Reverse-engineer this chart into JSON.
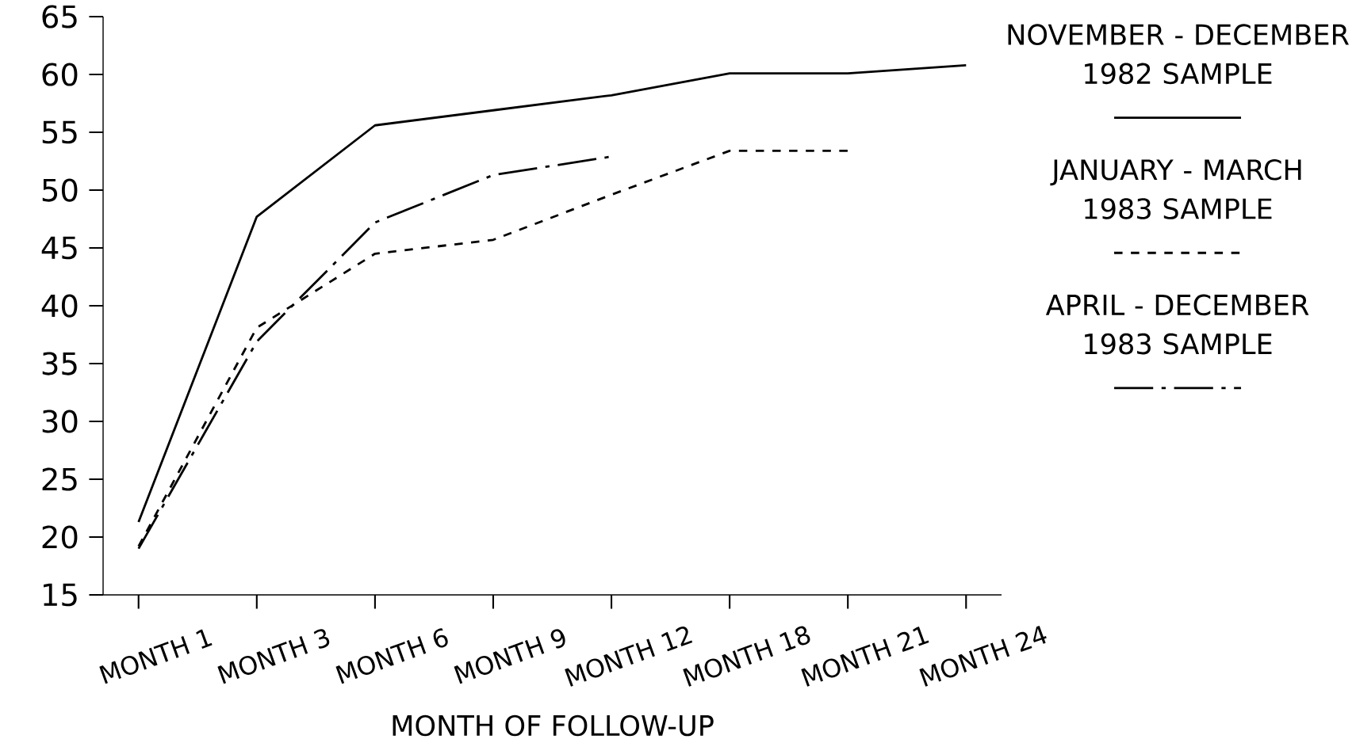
{
  "chart_data": {
    "type": "line",
    "xlabel": "MONTH OF FOLLOW-UP",
    "categories": [
      "MONTH 1",
      "MONTH 3",
      "MONTH 6",
      "MONTH 9",
      "MONTH 12",
      "MONTH 18",
      "MONTH 21",
      "MONTH 24"
    ],
    "series": [
      {
        "name": "NOVEMBER - DECEMBER 1982 SAMPLE",
        "color": "#000000",
        "line_style": "solid",
        "values": [
          21.3,
          47.7,
          55.6,
          56.9,
          58.2,
          60.1,
          60.1,
          60.8
        ]
      },
      {
        "name": "JANUARY - MARCH 1983 SAMPLE",
        "color": "#000000",
        "line_style": "dashed",
        "values": [
          19.2,
          38.1,
          44.5,
          45.7,
          49.6,
          53.4,
          53.4,
          null
        ]
      },
      {
        "name": "APRIL - DECEMBER 1983 SAMPLE",
        "color": "#000000",
        "line_style": "dashdot",
        "values": [
          19.0,
          36.9,
          47.2,
          51.3,
          52.9,
          null,
          null,
          null
        ]
      }
    ],
    "ylim": [
      15,
      65
    ],
    "yticks": [
      15,
      20,
      25,
      30,
      35,
      40,
      45,
      50,
      55,
      60,
      65
    ],
    "grid": false,
    "legend": "right",
    "marker": "none"
  }
}
